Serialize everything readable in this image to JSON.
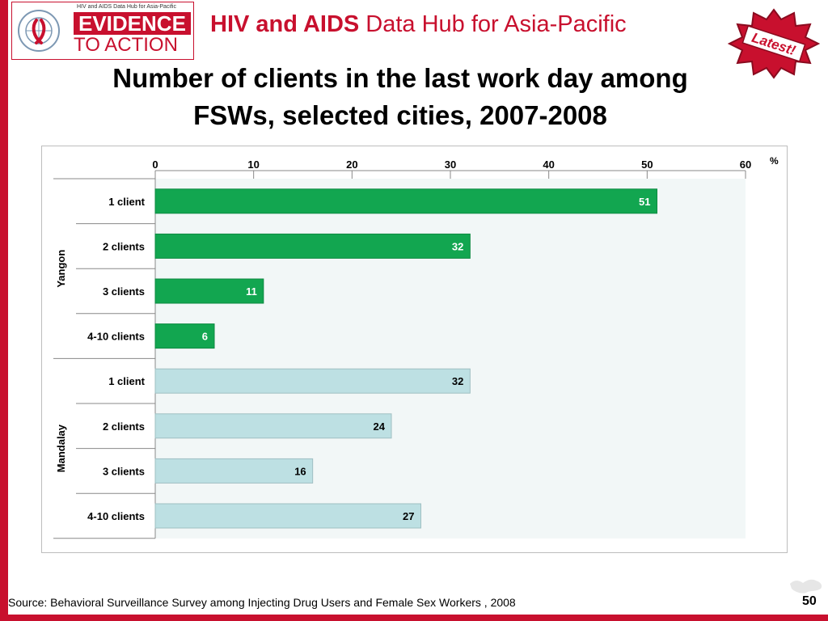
{
  "header": {
    "logo_small_text": "HIV and AIDS Data Hub for Asia-Pacific",
    "logo_main": "EVIDENCE",
    "logo_sub": "TO ACTION",
    "title_bold": "HIV and AIDS",
    "title_rest": " Data Hub for Asia-Pacific",
    "badge_text": "Latest!"
  },
  "slide": {
    "title_line1": "Number of clients in the last work day among",
    "title_line2": "FSWs, selected cities, 2007-2008"
  },
  "chart_data": {
    "type": "bar",
    "orientation": "horizontal",
    "unit": "%",
    "xlim": [
      0,
      60
    ],
    "xticks": [
      0,
      10,
      20,
      30,
      40,
      50,
      60
    ],
    "groups": [
      {
        "name": "Yangon",
        "color": "#12a650",
        "categories": [
          "1 client",
          "2 clients",
          "3 clients",
          "4-10 clients"
        ],
        "values": [
          51,
          32,
          11,
          6
        ]
      },
      {
        "name": "Mandalay",
        "color": "#bde0e3",
        "categories": [
          "1 client",
          "2 clients",
          "3 clients",
          "4-10 clients"
        ],
        "values": [
          32,
          24,
          16,
          27
        ]
      }
    ]
  },
  "footer": {
    "source": "Source: Behavioral Surveillance Survey among Injecting Drug Users and Female Sex Workers , 2008",
    "page_number": "50"
  },
  "colors": {
    "brand_red": "#c8102e",
    "plot_bg": "#f2f7f7",
    "bar_stroke": "#9fbfc2"
  }
}
